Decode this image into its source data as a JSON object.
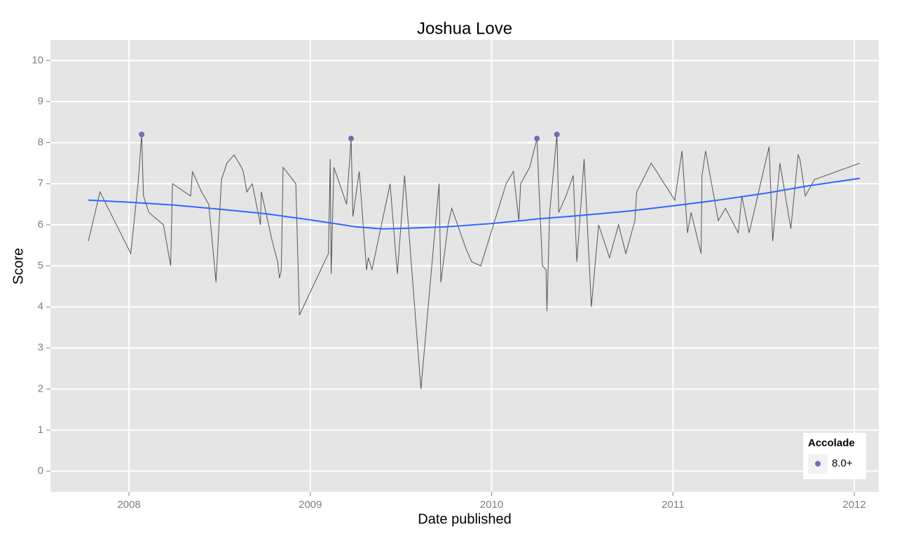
{
  "chart_data": {
    "type": "line",
    "title": "Joshua Love",
    "x_label": "Date published",
    "y_label": "Score",
    "color": "#555555",
    "x": [
      2007.776,
      2007.84,
      2008.01,
      2008.05,
      2008.07,
      2008.08,
      2008.11,
      2008.19,
      2008.23,
      2008.24,
      2008.34,
      2008.35,
      2008.4,
      2008.44,
      2008.48,
      2008.51,
      2008.54,
      2008.58,
      2008.62,
      2008.63,
      2008.65,
      2008.68,
      2008.725,
      2008.73,
      2008.79,
      2008.82,
      2008.83,
      2008.84,
      2008.85,
      2008.92,
      2008.94,
      2009.1,
      2009.11,
      2009.115,
      2009.13,
      2009.2,
      2009.225,
      2009.235,
      2009.27,
      2009.31,
      2009.32,
      2009.34,
      2009.44,
      2009.48,
      2009.52,
      2009.61,
      2009.71,
      2009.72,
      2009.76,
      2009.78,
      2009.86,
      2009.89,
      2009.94,
      2010.08,
      2010.12,
      2010.15,
      2010.16,
      2010.21,
      2010.25,
      2010.26,
      2010.28,
      2010.3,
      2010.305,
      2010.32,
      2010.36,
      2010.37,
      2010.41,
      2010.45,
      2010.47,
      2010.51,
      2010.55,
      2010.59,
      2010.65,
      2010.7,
      2010.74,
      2010.79,
      2010.8,
      2010.88,
      2011.01,
      2011.05,
      2011.08,
      2011.1,
      2011.155,
      2011.16,
      2011.18,
      2011.25,
      2011.29,
      2011.36,
      2011.38,
      2011.42,
      2011.53,
      2011.55,
      2011.59,
      2011.65,
      2011.69,
      2011.7,
      2011.73,
      2011.78,
      2012.03
    ],
    "values": [
      5.6,
      6.8,
      5.3,
      7.0,
      8.2,
      6.7,
      6.3,
      6.0,
      5.0,
      7.0,
      6.7,
      7.3,
      6.8,
      6.5,
      4.6,
      7.1,
      7.5,
      7.7,
      7.4,
      7.3,
      6.8,
      7.0,
      6.0,
      6.8,
      5.6,
      5.1,
      4.7,
      4.9,
      7.4,
      7.0,
      3.8,
      5.3,
      7.6,
      4.8,
      7.4,
      6.5,
      8.1,
      6.2,
      7.3,
      4.9,
      5.2,
      4.9,
      7.0,
      4.8,
      7.2,
      2.0,
      7.0,
      4.6,
      6.0,
      6.4,
      5.4,
      5.1,
      5.0,
      7.0,
      7.3,
      6.1,
      7.0,
      7.4,
      8.1,
      7.0,
      5.0,
      4.9,
      3.9,
      6.3,
      8.2,
      6.3,
      6.7,
      7.2,
      5.1,
      7.6,
      4.0,
      6.0,
      5.2,
      6.0,
      5.3,
      6.1,
      6.8,
      7.5,
      6.6,
      7.8,
      5.8,
      6.3,
      5.3,
      7.2,
      7.8,
      6.1,
      6.4,
      5.8,
      6.7,
      5.8,
      7.9,
      5.6,
      7.5,
      5.9,
      7.7,
      7.6,
      6.7,
      7.1,
      7.5
    ],
    "smooth": {
      "color": "#3366ff",
      "x": [
        2007.776,
        2008.0,
        2008.25,
        2008.5,
        2008.75,
        2009.0,
        2009.25,
        2009.4,
        2009.5,
        2009.75,
        2010.0,
        2010.25,
        2010.5,
        2010.75,
        2011.0,
        2011.25,
        2011.5,
        2011.75,
        2012.03
      ],
      "values": [
        6.6,
        6.55,
        6.48,
        6.38,
        6.27,
        6.12,
        5.95,
        5.9,
        5.91,
        5.95,
        6.03,
        6.14,
        6.23,
        6.33,
        6.46,
        6.6,
        6.76,
        6.95,
        7.13
      ]
    },
    "highlight": {
      "legend_title": "Accolade",
      "name": "8.0+",
      "color": "#756bb1",
      "x": [
        2008.07,
        2009.225,
        2010.25,
        2010.36
      ],
      "values": [
        8.2,
        8.1,
        8.1,
        8.2
      ]
    },
    "xlim": [
      2007.567,
      2012.135
    ],
    "ylim": [
      -0.5,
      10.5
    ],
    "xticks": [
      2008,
      2009,
      2010,
      2011,
      2012
    ],
    "yticks": [
      0,
      1,
      2,
      3,
      4,
      5,
      6,
      7,
      8,
      9,
      10
    ],
    "grid": true,
    "legend_position": "bottom-right"
  }
}
